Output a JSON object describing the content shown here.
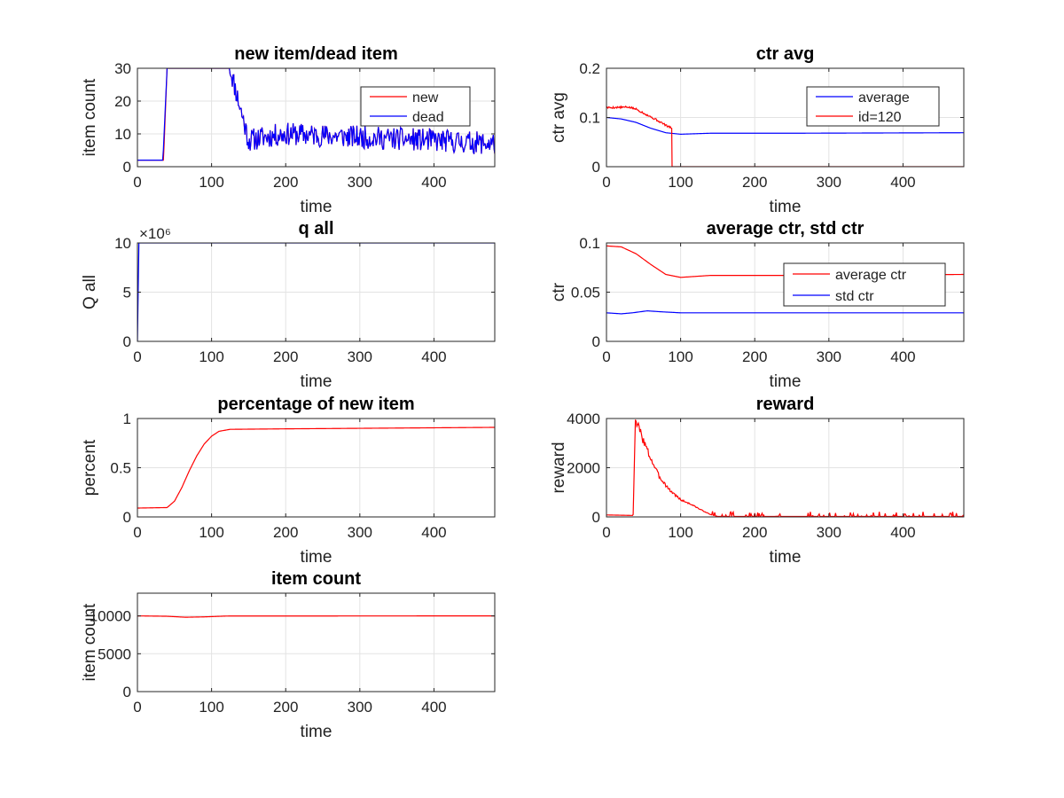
{
  "chart_data": [
    {
      "type": "line",
      "title": "new item/dead item",
      "xlabel": "time",
      "ylabel": "item count",
      "xlim": [
        0,
        482
      ],
      "ylim": [
        0,
        30
      ],
      "xticks": [
        0,
        100,
        200,
        300,
        400
      ],
      "yticks": [
        0,
        10,
        20,
        30
      ],
      "grid": true,
      "legend_position": "top-right",
      "series": [
        {
          "name": "new",
          "color": "#ff0000",
          "kind": "noisy",
          "points": [
            [
              0,
              1
            ],
            [
              35,
              1
            ],
            [
              40,
              30
            ],
            [
              125,
              30
            ],
            [
              150,
              8
            ],
            [
              170,
              9
            ],
            [
              200,
              10
            ],
            [
              300,
              9
            ],
            [
              400,
              8
            ],
            [
              482,
              7
            ]
          ],
          "noise": 3.5,
          "noise_start": 125,
          "seed": 11,
          "clip": [
            2,
            30
          ]
        },
        {
          "name": "dead",
          "color": "#0000ff",
          "kind": "noisy",
          "points": [
            [
              0,
              0.2
            ],
            [
              34,
              0.2
            ],
            [
              40,
              30
            ],
            [
              125,
              30
            ],
            [
              150,
              8
            ],
            [
              170,
              9
            ],
            [
              200,
              10
            ],
            [
              300,
              9
            ],
            [
              400,
              8
            ],
            [
              482,
              7
            ]
          ],
          "noise": 3.5,
          "noise_start": 125,
          "seed": 11,
          "clip": [
            2,
            30
          ]
        }
      ]
    },
    {
      "type": "line",
      "title": "ctr avg",
      "xlabel": "time",
      "ylabel": "ctr avg",
      "xlim": [
        0,
        482
      ],
      "ylim": [
        0,
        0.2
      ],
      "xticks": [
        0,
        100,
        200,
        300,
        400
      ],
      "yticks": [
        0,
        0.1,
        0.2
      ],
      "grid": true,
      "legend_position": "top-right",
      "series": [
        {
          "name": "average",
          "color": "#0000ff",
          "points": [
            [
              0,
              0.1
            ],
            [
              20,
              0.097
            ],
            [
              40,
              0.09
            ],
            [
              60,
              0.078
            ],
            [
              80,
              0.069
            ],
            [
              100,
              0.066
            ],
            [
              140,
              0.068
            ],
            [
              250,
              0.068
            ],
            [
              482,
              0.069
            ]
          ]
        },
        {
          "name": "id=120",
          "color": "#ff0000",
          "kind": "noisy",
          "points": [
            [
              0,
              0.12
            ],
            [
              30,
              0.121
            ],
            [
              40,
              0.117
            ],
            [
              55,
              0.105
            ],
            [
              70,
              0.093
            ],
            [
              85,
              0.08
            ],
            [
              88,
              0.079
            ],
            [
              88.5,
              0
            ],
            [
              482,
              0
            ]
          ],
          "noise": 0.002,
          "noise_start": 0,
          "noise_end": 88,
          "seed": 5
        }
      ]
    },
    {
      "type": "line",
      "title": "q all",
      "xlabel": "time",
      "ylabel": "Q all",
      "xlim": [
        0,
        482
      ],
      "ylim": [
        0,
        10
      ],
      "xticks": [
        0,
        100,
        200,
        300,
        400
      ],
      "yticks": [
        0,
        5,
        10
      ],
      "multiplier": "×10⁶",
      "grid": true,
      "series": [
        {
          "name": "",
          "color": "#0000ff",
          "points": [
            [
              0,
              0
            ],
            [
              2,
              10
            ],
            [
              482,
              10
            ]
          ]
        }
      ]
    },
    {
      "type": "line",
      "title": "average ctr, std ctr",
      "xlabel": "time",
      "ylabel": "ctr",
      "xlim": [
        0,
        482
      ],
      "ylim": [
        0,
        0.1
      ],
      "xticks": [
        0,
        100,
        200,
        300,
        400
      ],
      "yticks": [
        0,
        0.05,
        0.1
      ],
      "grid": true,
      "legend_position": "top-right",
      "series": [
        {
          "name": "average ctr",
          "color": "#ff0000",
          "points": [
            [
              0,
              0.097
            ],
            [
              20,
              0.096
            ],
            [
              40,
              0.089
            ],
            [
              60,
              0.078
            ],
            [
              80,
              0.068
            ],
            [
              100,
              0.065
            ],
            [
              140,
              0.067
            ],
            [
              250,
              0.067
            ],
            [
              482,
              0.068
            ]
          ]
        },
        {
          "name": "std ctr",
          "color": "#0000ff",
          "points": [
            [
              0,
              0.029
            ],
            [
              20,
              0.028
            ],
            [
              35,
              0.029
            ],
            [
              55,
              0.031
            ],
            [
              75,
              0.03
            ],
            [
              100,
              0.029
            ],
            [
              482,
              0.029
            ]
          ]
        }
      ]
    },
    {
      "type": "line",
      "title": "percentage of new item",
      "xlabel": "time",
      "ylabel": "percent",
      "xlim": [
        0,
        482
      ],
      "ylim": [
        0,
        1
      ],
      "xticks": [
        0,
        100,
        200,
        300,
        400
      ],
      "yticks": [
        0,
        0.5,
        1
      ],
      "grid": true,
      "series": [
        {
          "name": "",
          "color": "#ff0000",
          "points": [
            [
              0,
              0.09
            ],
            [
              40,
              0.095
            ],
            [
              50,
              0.16
            ],
            [
              60,
              0.3
            ],
            [
              70,
              0.47
            ],
            [
              80,
              0.62
            ],
            [
              90,
              0.74
            ],
            [
              100,
              0.82
            ],
            [
              110,
              0.87
            ],
            [
              125,
              0.89
            ],
            [
              200,
              0.895
            ],
            [
              482,
              0.91
            ]
          ]
        }
      ]
    },
    {
      "type": "line",
      "title": "reward",
      "xlabel": "time",
      "ylabel": "reward",
      "xlim": [
        0,
        482
      ],
      "ylim": [
        0,
        4000
      ],
      "xticks": [
        0,
        100,
        200,
        300,
        400
      ],
      "yticks": [
        0,
        2000,
        4000
      ],
      "grid": true,
      "series": [
        {
          "name": "",
          "color": "#ff0000",
          "kind": "spiky",
          "points": [
            [
              0,
              80
            ],
            [
              35,
              60
            ],
            [
              36,
              100
            ],
            [
              39,
              3950
            ],
            [
              45,
              3500
            ],
            [
              55,
              2700
            ],
            [
              70,
              1700
            ],
            [
              85,
              1100
            ],
            [
              100,
              700
            ],
            [
              115,
              500
            ],
            [
              125,
              330
            ],
            [
              140,
              100
            ],
            [
              150,
              20
            ],
            [
              482,
              20
            ]
          ],
          "spikes": 190,
          "spike_start": 140,
          "seed": 3
        }
      ]
    },
    {
      "type": "line",
      "title": "item count",
      "xlabel": "time",
      "ylabel": "item count",
      "xlim": [
        0,
        482
      ],
      "ylim": [
        0,
        13000
      ],
      "xticks": [
        0,
        100,
        200,
        300,
        400
      ],
      "yticks": [
        0,
        5000,
        10000
      ],
      "grid": true,
      "series": [
        {
          "name": "",
          "color": "#ff0000",
          "points": [
            [
              0,
              10000
            ],
            [
              40,
              9950
            ],
            [
              65,
              9820
            ],
            [
              90,
              9870
            ],
            [
              120,
              9980
            ],
            [
              482,
              10000
            ]
          ]
        }
      ]
    }
  ]
}
